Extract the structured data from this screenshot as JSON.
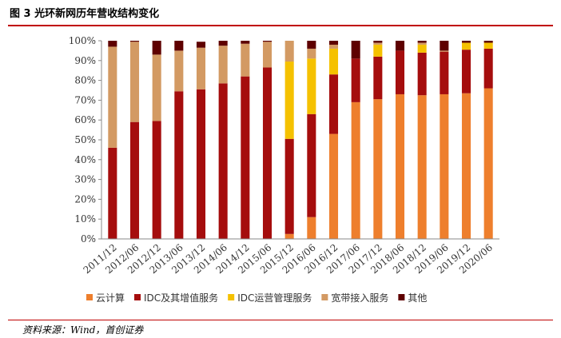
{
  "title": "图 3 光环新网历年营收结构变化",
  "source": "资料来源：Wind，首创证券",
  "chart_data": {
    "type": "bar",
    "stacked": true,
    "categories": [
      "2011/12",
      "2012/06",
      "2012/12",
      "2013/06",
      "2013/12",
      "2014/06",
      "2014/12",
      "2015/06",
      "2015/12",
      "2016/06",
      "2016/12",
      "2017/06",
      "2017/12",
      "2018/06",
      "2018/12",
      "2019/06",
      "2019/12",
      "2020/06"
    ],
    "ylim": [
      0,
      100
    ],
    "y_ticks": [
      "0%",
      "10%",
      "20%",
      "30%",
      "40%",
      "50%",
      "60%",
      "70%",
      "80%",
      "90%",
      "100%"
    ],
    "legend_position": "bottom",
    "grid": false,
    "series": [
      {
        "name": "云计算",
        "color": "#ee7f2d",
        "values": [
          0,
          0,
          0,
          0,
          0,
          0,
          0,
          0,
          2.5,
          11,
          53,
          69,
          70.5,
          73,
          72.5,
          73,
          73.5,
          76
        ]
      },
      {
        "name": "IDC及其增值服务",
        "color": "#a50d0d",
        "values": [
          46,
          59,
          59.5,
          74.5,
          75.5,
          78.5,
          82,
          86.5,
          48,
          52,
          30,
          22,
          21.5,
          22,
          21.5,
          21.5,
          22,
          20
        ]
      },
      {
        "name": "IDC运营管理服务",
        "color": "#f5c100",
        "values": [
          0,
          0,
          0,
          0,
          0,
          0,
          0,
          0,
          39,
          28,
          13,
          0,
          6,
          0,
          4,
          0,
          3.5,
          3
        ]
      },
      {
        "name": "宽带接入服务",
        "color": "#d39a63",
        "values": [
          51,
          40.5,
          33.5,
          20.5,
          21,
          19,
          16.5,
          13,
          10.5,
          5,
          2,
          0,
          1,
          0,
          1,
          0.5,
          0,
          0
        ]
      },
      {
        "name": "其他",
        "color": "#5e0000",
        "values": [
          3,
          0.5,
          7,
          5,
          3,
          2.5,
          1.5,
          0.5,
          0,
          4,
          2,
          9,
          1,
          5,
          1,
          5,
          1,
          1
        ]
      }
    ]
  }
}
